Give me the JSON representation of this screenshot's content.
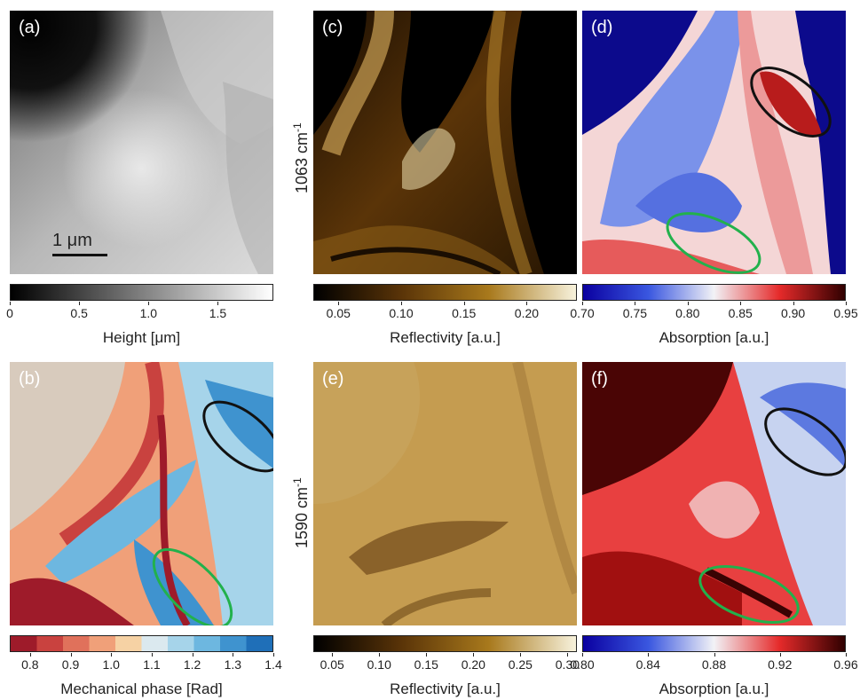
{
  "panels": {
    "a": {
      "label": "(a)",
      "scalebar": "1 μm"
    },
    "b": {
      "label": "(b)"
    },
    "c": {
      "label": "(c)"
    },
    "d": {
      "label": "(d)"
    },
    "e": {
      "label": "(e)"
    },
    "f": {
      "label": "(f)"
    }
  },
  "row_labels": {
    "top_base": "1063 cm",
    "top_sup": "-1",
    "bottom_base": "1590 cm",
    "bottom_sup": "-1"
  },
  "colors": {
    "black_ellipse": "#111111",
    "green_ellipse": "#22b14c"
  },
  "chart_data": [
    {
      "type": "heatmap",
      "panel": "(a)",
      "title": "Height [μm]",
      "colormap": [
        "#000000",
        "#ffffff"
      ],
      "range": [
        0,
        1.9
      ],
      "ticks": [
        "0",
        "0.5",
        "1.0",
        "1.5"
      ],
      "tick_values": [
        0,
        0.5,
        1.0,
        1.5
      ]
    },
    {
      "type": "heatmap",
      "panel": "(b)",
      "title": "Mechanical phase [Rad]",
      "colormap_discrete": [
        "#9e1b2a",
        "#c9423f",
        "#e0715b",
        "#f0a079",
        "#f6d2a4",
        "#dbe9ef",
        "#a6d4ea",
        "#6db7e0",
        "#3f93cf",
        "#1f6fb8"
      ],
      "range": [
        0.75,
        1.4
      ],
      "ticks": [
        "0.8",
        "0.9",
        "1.0",
        "1.1",
        "1.2",
        "1.3",
        "1.4"
      ],
      "tick_values": [
        0.8,
        0.9,
        1.0,
        1.1,
        1.2,
        1.3,
        1.4
      ]
    },
    {
      "type": "heatmap",
      "panel": "(c)",
      "title": "Reflectivity [a.u.]",
      "colormap": [
        "#000000",
        "#5a3408",
        "#a8791c",
        "#f7f2dc"
      ],
      "range": [
        0.03,
        0.24
      ],
      "ticks": [
        "0.05",
        "0.10",
        "0.15",
        "0.20"
      ],
      "tick_values": [
        0.05,
        0.1,
        0.15,
        0.2
      ]
    },
    {
      "type": "heatmap",
      "panel": "(d)",
      "title": "Absorption [a.u.]",
      "colormap": [
        "#0a00a0",
        "#3a57e0",
        "#f2f2f6",
        "#e52a2a",
        "#300000"
      ],
      "range": [
        0.7,
        0.95
      ],
      "ticks": [
        "0.70",
        "0.75",
        "0.80",
        "0.85",
        "0.90",
        "0.95"
      ],
      "tick_values": [
        0.7,
        0.75,
        0.8,
        0.85,
        0.9,
        0.95
      ]
    },
    {
      "type": "heatmap",
      "panel": "(e)",
      "title": "Reflectivity [a.u.]",
      "colormap": [
        "#000000",
        "#5a3408",
        "#a8791c",
        "#f7f2dc"
      ],
      "range": [
        0.03,
        0.31
      ],
      "ticks": [
        "0.05",
        "0.10",
        "0.15",
        "0.20",
        "0.25",
        "0.30"
      ],
      "tick_values": [
        0.05,
        0.1,
        0.15,
        0.2,
        0.25,
        0.3
      ]
    },
    {
      "type": "heatmap",
      "panel": "(f)",
      "title": "Absorption [a.u.]",
      "colormap": [
        "#0a00a0",
        "#3a57e0",
        "#f2f2f6",
        "#e52a2a",
        "#300000"
      ],
      "range": [
        0.8,
        0.96
      ],
      "ticks": [
        "0.80",
        "0.84",
        "0.88",
        "0.92",
        "0.96"
      ],
      "tick_values": [
        0.8,
        0.84,
        0.88,
        0.92,
        0.96
      ]
    }
  ]
}
